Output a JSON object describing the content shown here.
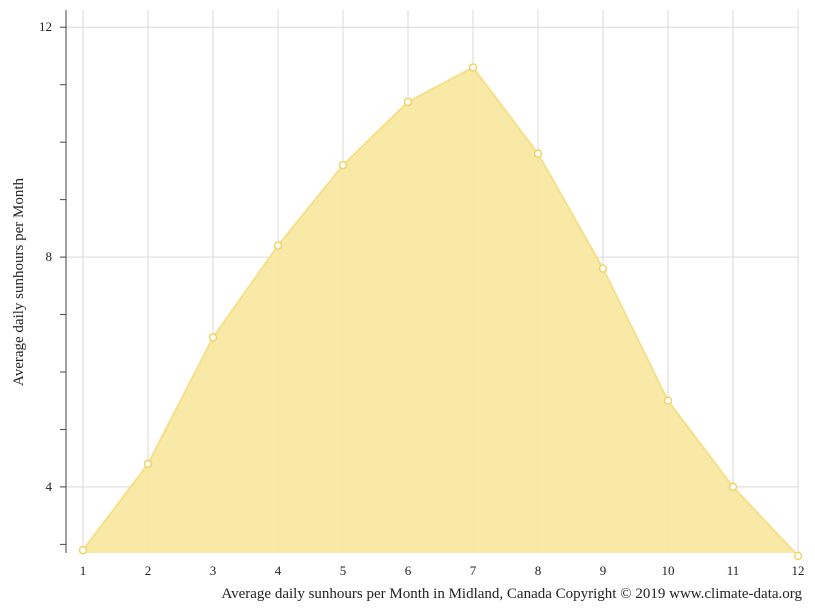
{
  "chart_data": {
    "type": "area",
    "title": "",
    "xlabel": "Average daily sunhours per Month in Midland, Canada Copyright © 2019 www.climate-data.org",
    "ylabel": "Average daily sunhours per Month",
    "x": [
      1,
      2,
      3,
      4,
      5,
      6,
      7,
      8,
      9,
      10,
      11,
      12
    ],
    "series": [
      {
        "values": [
          2.9,
          4.4,
          6.6,
          8.2,
          9.6,
          10.7,
          11.3,
          9.8,
          7.8,
          5.5,
          4.0,
          2.8
        ]
      }
    ],
    "xlim": [
      1,
      12
    ],
    "ylim": [
      2.85,
      12.3
    ],
    "y_ticks": [
      4,
      8,
      12
    ],
    "grid": true,
    "legend": "none",
    "colors": {
      "fill": "#f8e9a1",
      "line": "#f5e08a",
      "marker_fill": "#ffffff",
      "marker_stroke": "#f0d266",
      "grid": "#d9d9d9",
      "axis": "#444444"
    }
  }
}
